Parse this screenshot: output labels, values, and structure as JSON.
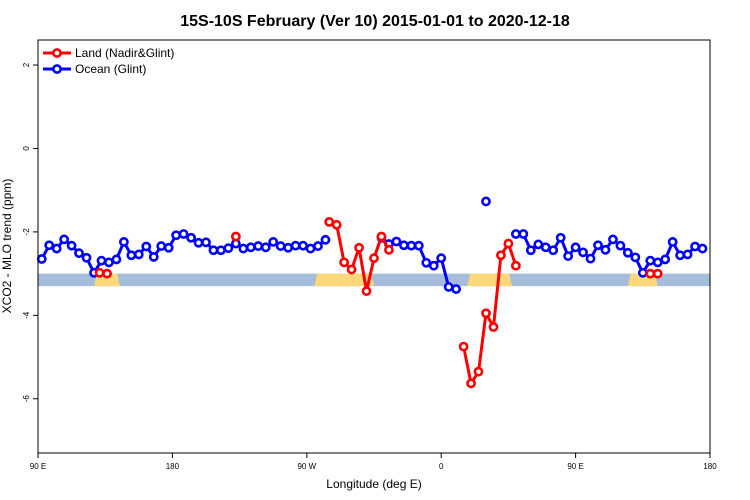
{
  "chart_data": {
    "type": "line",
    "title": "15S-10S February (Ver 10)   2015-01-01 to 2020-12-18",
    "xlabel": "Longitude (deg E)",
    "ylabel": "XCO2 - MLO trend (ppm)",
    "xlim": [
      90,
      450
    ],
    "ylim": [
      -7.3,
      2.6
    ],
    "x_ticks": [
      {
        "value": 90,
        "label": "90 E"
      },
      {
        "value": 162,
        "label": "180"
      },
      {
        "value": 234,
        "label": "90 W"
      },
      {
        "value": 306,
        "label": "0"
      },
      {
        "value": 378,
        "label": "90 E"
      },
      {
        "value": 450,
        "label": "180"
      }
    ],
    "y_ticks": [
      {
        "value": 2,
        "label": "2"
      },
      {
        "value": 0,
        "label": "0"
      },
      {
        "value": -2,
        "label": "-2"
      },
      {
        "value": -4,
        "label": "-4"
      },
      {
        "value": -6,
        "label": "-6"
      }
    ],
    "legend": {
      "position": "top-left",
      "items": [
        {
          "label": "Land (Nadir&Glint)",
          "color": "#ff0000"
        },
        {
          "label": "Ocean (Glint)",
          "color": "#0000ff"
        }
      ]
    },
    "background_band": {
      "y_range": [
        -3.3,
        -3.0
      ],
      "ocean_color": "#a5bddb",
      "land_color": "#fdd87a",
      "land_x_ranges": [
        [
          120,
          134
        ],
        [
          238,
          270
        ],
        [
          320,
          344
        ],
        [
          406,
          422
        ]
      ]
    },
    "series": [
      {
        "name": "Ocean (Glint)",
        "color": "#0000ff",
        "segments": [
          [
            [
              92,
              -2.65
            ],
            [
              96,
              -2.32
            ],
            [
              100,
              -2.4
            ],
            [
              104,
              -2.18
            ],
            [
              108,
              -2.33
            ],
            [
              112,
              -2.51
            ],
            [
              116,
              -2.62
            ],
            [
              120,
              -2.98
            ],
            [
              124,
              -2.69
            ],
            [
              128,
              -2.73
            ],
            [
              132,
              -2.66
            ],
            [
              136,
              -2.24
            ],
            [
              140,
              -2.56
            ],
            [
              144,
              -2.54
            ],
            [
              148,
              -2.35
            ],
            [
              152,
              -2.6
            ],
            [
              156,
              -2.34
            ],
            [
              160,
              -2.38
            ],
            [
              164,
              -2.08
            ],
            [
              168,
              -2.05
            ],
            [
              172,
              -2.14
            ],
            [
              176,
              -2.26
            ],
            [
              180,
              -2.25
            ],
            [
              184,
              -2.44
            ],
            [
              188,
              -2.44
            ],
            [
              192,
              -2.39
            ],
            [
              196,
              -2.28
            ],
            [
              200,
              -2.4
            ],
            [
              204,
              -2.37
            ],
            [
              208,
              -2.34
            ],
            [
              212,
              -2.37
            ],
            [
              216,
              -2.24
            ],
            [
              220,
              -2.34
            ],
            [
              224,
              -2.38
            ],
            [
              228,
              -2.33
            ],
            [
              232,
              -2.33
            ],
            [
              236,
              -2.4
            ],
            [
              240,
              -2.34
            ],
            [
              244,
              -2.19
            ]
          ],
          [
            [
              274,
              -2.14
            ],
            [
              278,
              -2.29
            ],
            [
              282,
              -2.23
            ],
            [
              286,
              -2.32
            ],
            [
              290,
              -2.33
            ],
            [
              294,
              -2.33
            ],
            [
              298,
              -2.74
            ],
            [
              302,
              -2.81
            ],
            [
              306,
              -2.63
            ],
            [
              310,
              -3.32
            ],
            [
              314,
              -3.37
            ]
          ],
          [
            [
              330,
              -1.27
            ]
          ],
          [
            [
              346,
              -2.05
            ],
            [
              350,
              -2.05
            ],
            [
              354,
              -2.44
            ],
            [
              358,
              -2.3
            ],
            [
              362,
              -2.37
            ],
            [
              366,
              -2.44
            ],
            [
              370,
              -2.14
            ],
            [
              374,
              -2.58
            ],
            [
              378,
              -2.37
            ],
            [
              382,
              -2.49
            ],
            [
              386,
              -2.64
            ],
            [
              390,
              -2.32
            ],
            [
              394,
              -2.43
            ],
            [
              398,
              -2.18
            ],
            [
              402,
              -2.33
            ],
            [
              406,
              -2.5
            ],
            [
              410,
              -2.61
            ],
            [
              414,
              -2.98
            ],
            [
              418,
              -2.69
            ],
            [
              422,
              -2.73
            ],
            [
              426,
              -2.66
            ],
            [
              430,
              -2.24
            ],
            [
              434,
              -2.56
            ],
            [
              438,
              -2.54
            ],
            [
              442,
              -2.35
            ],
            [
              446,
              -2.4
            ]
          ]
        ]
      },
      {
        "name": "Land (Nadir&Glint)",
        "color": "#ff0000",
        "segments": [
          [
            [
              123,
              -2.98
            ],
            [
              127,
              -3.0
            ]
          ],
          [
            [
              196,
              -2.11
            ]
          ],
          [
            [
              246,
              -1.76
            ],
            [
              250,
              -1.83
            ],
            [
              254,
              -2.73
            ],
            [
              258,
              -2.9
            ],
            [
              262,
              -2.38
            ],
            [
              266,
              -3.42
            ],
            [
              270,
              -2.63
            ],
            [
              274,
              -2.11
            ],
            [
              278,
              -2.43
            ]
          ],
          [
            [
              318,
              -4.75
            ],
            [
              322,
              -5.63
            ],
            [
              326,
              -5.35
            ],
            [
              330,
              -3.95
            ],
            [
              334,
              -4.28
            ],
            [
              338,
              -2.56
            ],
            [
              342,
              -2.28
            ],
            [
              346,
              -2.81
            ]
          ],
          [
            [
              418,
              -3.0
            ],
            [
              422,
              -3.0
            ]
          ]
        ]
      }
    ]
  }
}
